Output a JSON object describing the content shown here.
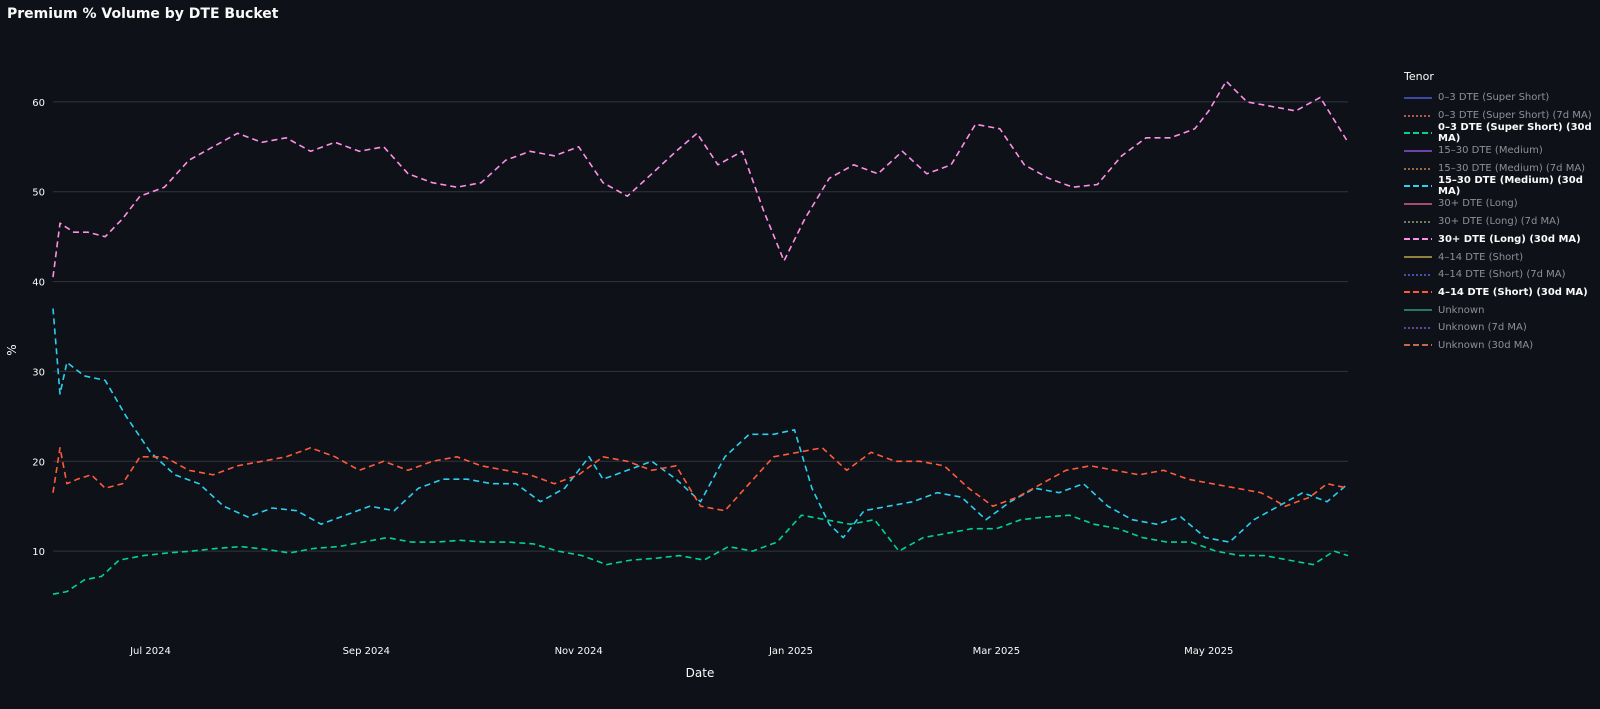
{
  "chart_data": {
    "type": "line",
    "title": "Premium % Volume by DTE Bucket",
    "xlabel": "Date",
    "ylabel": "%",
    "ylim": [
      2,
      68
    ],
    "yticks": [
      10,
      20,
      30,
      40,
      50,
      60
    ],
    "x_start": "2024-06-03",
    "x_end": "2025-06-10",
    "xticks": [
      {
        "date": "2024-07-01",
        "label": "Jul 2024"
      },
      {
        "date": "2024-09-01",
        "label": "Sep 2024"
      },
      {
        "date": "2024-11-01",
        "label": "Nov 2024"
      },
      {
        "date": "2025-01-01",
        "label": "Jan 2025"
      },
      {
        "date": "2025-03-01",
        "label": "Mar 2025"
      },
      {
        "date": "2025-05-01",
        "label": "May 2025"
      }
    ],
    "legend": {
      "title": "Tenor",
      "items": [
        {
          "label": "0–3 DTE (Super Short)",
          "color": "#4e5ad6",
          "dash": "solid",
          "bold": false
        },
        {
          "label": "0–3 DTE (Super Short) (7d MA)",
          "color": "#e8715e",
          "dash": "dot",
          "bold": false
        },
        {
          "label": "0–3 DTE (Super Short) (30d MA)",
          "color": "#00d48f",
          "dash": "dash",
          "bold": true
        },
        {
          "label": "15–30 DTE (Medium)",
          "color": "#8b56d8",
          "dash": "solid",
          "bold": false
        },
        {
          "label": "15–30 DTE (Medium) (7d MA)",
          "color": "#c9874c",
          "dash": "dot",
          "bold": false
        },
        {
          "label": "15–30 DTE (Medium) (30d MA)",
          "color": "#2ad0f0",
          "dash": "dash",
          "bold": true
        },
        {
          "label": "30+ DTE (Long)",
          "color": "#d8608a",
          "dash": "solid",
          "bold": false
        },
        {
          "label": "30+ DTE (Long) (7d MA)",
          "color": "#9ea07a",
          "dash": "dot",
          "bold": false
        },
        {
          "label": "30+ DTE (Long) (30d MA)",
          "color": "#ff8fe8",
          "dash": "dash",
          "bold": true
        },
        {
          "label": "4–14 DTE (Short)",
          "color": "#b9a84a",
          "dash": "solid",
          "bold": false
        },
        {
          "label": "4–14 DTE (Short) (7d MA)",
          "color": "#5866d6",
          "dash": "dot",
          "bold": false
        },
        {
          "label": "4–14 DTE (Short) (30d MA)",
          "color": "#ff5a3c",
          "dash": "dash",
          "bold": true
        },
        {
          "label": "Unknown",
          "color": "#2e9c76",
          "dash": "solid",
          "bold": false
        },
        {
          "label": "Unknown (7d MA)",
          "color": "#7a56c9",
          "dash": "dot",
          "bold": false
        },
        {
          "label": "Unknown (30d MA)",
          "color": "#c46a4c",
          "dash": "dash",
          "bold": false
        }
      ]
    },
    "series": [
      {
        "name": "30+ DTE (Long) (30d MA)",
        "color": "#ff8fe8",
        "points": [
          [
            "2024-06-03",
            40.5
          ],
          [
            "2024-06-05",
            46.5
          ],
          [
            "2024-06-09",
            45.5
          ],
          [
            "2024-06-13",
            45.5
          ],
          [
            "2024-06-18",
            45.0
          ],
          [
            "2024-06-23",
            47.0
          ],
          [
            "2024-06-28",
            49.5
          ],
          [
            "2024-07-05",
            50.5
          ],
          [
            "2024-07-12",
            53.5
          ],
          [
            "2024-07-19",
            55.0
          ],
          [
            "2024-07-26",
            56.5
          ],
          [
            "2024-08-02",
            55.5
          ],
          [
            "2024-08-09",
            56.0
          ],
          [
            "2024-08-16",
            54.5
          ],
          [
            "2024-08-23",
            55.5
          ],
          [
            "2024-08-30",
            54.5
          ],
          [
            "2024-09-06",
            55.0
          ],
          [
            "2024-09-13",
            52.0
          ],
          [
            "2024-09-20",
            51.0
          ],
          [
            "2024-09-27",
            50.5
          ],
          [
            "2024-10-04",
            51.0
          ],
          [
            "2024-10-11",
            53.5
          ],
          [
            "2024-10-18",
            54.5
          ],
          [
            "2024-10-25",
            54.0
          ],
          [
            "2024-11-01",
            55.0
          ],
          [
            "2024-11-08",
            51.0
          ],
          [
            "2024-11-15",
            49.5
          ],
          [
            "2024-11-22",
            52.0
          ],
          [
            "2024-11-29",
            54.5
          ],
          [
            "2024-12-05",
            56.5
          ],
          [
            "2024-12-11",
            53.0
          ],
          [
            "2024-12-18",
            54.5
          ],
          [
            "2024-12-24",
            48.0
          ],
          [
            "2024-12-30",
            42.3
          ],
          [
            "2025-01-05",
            47.0
          ],
          [
            "2025-01-12",
            51.5
          ],
          [
            "2025-01-19",
            53.0
          ],
          [
            "2025-01-26",
            52.0
          ],
          [
            "2025-02-02",
            54.5
          ],
          [
            "2025-02-09",
            52.0
          ],
          [
            "2025-02-16",
            53.0
          ],
          [
            "2025-02-23",
            57.5
          ],
          [
            "2025-03-02",
            57.0
          ],
          [
            "2025-03-09",
            53.0
          ],
          [
            "2025-03-16",
            51.5
          ],
          [
            "2025-03-23",
            50.5
          ],
          [
            "2025-03-30",
            50.8
          ],
          [
            "2025-04-06",
            54.0
          ],
          [
            "2025-04-13",
            56.0
          ],
          [
            "2025-04-20",
            56.0
          ],
          [
            "2025-04-27",
            57.0
          ],
          [
            "2025-05-01",
            59.0
          ],
          [
            "2025-05-06",
            62.3
          ],
          [
            "2025-05-12",
            60.0
          ],
          [
            "2025-05-19",
            59.5
          ],
          [
            "2025-05-26",
            59.0
          ],
          [
            "2025-06-02",
            60.5
          ],
          [
            "2025-06-06",
            58.0
          ],
          [
            "2025-06-10",
            55.5
          ]
        ]
      },
      {
        "name": "15–30 DTE (Medium) (30d MA)",
        "color": "#2ad0f0",
        "points": [
          [
            "2024-06-03",
            37.0
          ],
          [
            "2024-06-05",
            27.5
          ],
          [
            "2024-06-07",
            31.0
          ],
          [
            "2024-06-12",
            29.5
          ],
          [
            "2024-06-18",
            29.0
          ],
          [
            "2024-06-24",
            25.0
          ],
          [
            "2024-07-01",
            21.0
          ],
          [
            "2024-07-08",
            18.5
          ],
          [
            "2024-07-15",
            17.5
          ],
          [
            "2024-07-22",
            15.0
          ],
          [
            "2024-07-29",
            13.8
          ],
          [
            "2024-08-05",
            14.8
          ],
          [
            "2024-08-12",
            14.5
          ],
          [
            "2024-08-19",
            13.0
          ],
          [
            "2024-08-26",
            14.0
          ],
          [
            "2024-09-02",
            15.0
          ],
          [
            "2024-09-09",
            14.5
          ],
          [
            "2024-09-16",
            17.0
          ],
          [
            "2024-09-23",
            18.0
          ],
          [
            "2024-09-30",
            18.0
          ],
          [
            "2024-10-07",
            17.5
          ],
          [
            "2024-10-14",
            17.5
          ],
          [
            "2024-10-21",
            15.5
          ],
          [
            "2024-10-28",
            17.0
          ],
          [
            "2024-11-04",
            20.5
          ],
          [
            "2024-11-08",
            18.0
          ],
          [
            "2024-11-15",
            19.0
          ],
          [
            "2024-11-22",
            20.0
          ],
          [
            "2024-11-29",
            18.0
          ],
          [
            "2024-12-06",
            15.5
          ],
          [
            "2024-12-13",
            20.5
          ],
          [
            "2024-12-20",
            23.0
          ],
          [
            "2024-12-27",
            23.0
          ],
          [
            "2025-01-02",
            23.5
          ],
          [
            "2025-01-07",
            17.0
          ],
          [
            "2025-01-12",
            13.0
          ],
          [
            "2025-01-16",
            11.5
          ],
          [
            "2025-01-22",
            14.5
          ],
          [
            "2025-01-29",
            15.0
          ],
          [
            "2025-02-05",
            15.5
          ],
          [
            "2025-02-12",
            16.5
          ],
          [
            "2025-02-19",
            16.0
          ],
          [
            "2025-02-26",
            13.5
          ],
          [
            "2025-03-05",
            15.5
          ],
          [
            "2025-03-12",
            17.0
          ],
          [
            "2025-03-19",
            16.5
          ],
          [
            "2025-03-26",
            17.5
          ],
          [
            "2025-04-02",
            15.0
          ],
          [
            "2025-04-09",
            13.5
          ],
          [
            "2025-04-16",
            13.0
          ],
          [
            "2025-04-23",
            13.8
          ],
          [
            "2025-04-30",
            11.5
          ],
          [
            "2025-05-07",
            11.0
          ],
          [
            "2025-05-14",
            13.5
          ],
          [
            "2025-05-21",
            15.0
          ],
          [
            "2025-05-28",
            16.5
          ],
          [
            "2025-06-04",
            15.5
          ],
          [
            "2025-06-10",
            17.5
          ]
        ]
      },
      {
        "name": "4–14 DTE (Short) (30d MA)",
        "color": "#ff5a3c",
        "points": [
          [
            "2024-06-03",
            16.5
          ],
          [
            "2024-06-05",
            21.5
          ],
          [
            "2024-06-07",
            17.5
          ],
          [
            "2024-06-10",
            18.0
          ],
          [
            "2024-06-14",
            18.5
          ],
          [
            "2024-06-18",
            17.0
          ],
          [
            "2024-06-23",
            17.5
          ],
          [
            "2024-06-28",
            20.5
          ],
          [
            "2024-07-05",
            20.5
          ],
          [
            "2024-07-12",
            19.0
          ],
          [
            "2024-07-19",
            18.5
          ],
          [
            "2024-07-26",
            19.5
          ],
          [
            "2024-08-02",
            20.0
          ],
          [
            "2024-08-09",
            20.5
          ],
          [
            "2024-08-16",
            21.5
          ],
          [
            "2024-08-23",
            20.5
          ],
          [
            "2024-08-30",
            19.0
          ],
          [
            "2024-09-06",
            20.0
          ],
          [
            "2024-09-13",
            19.0
          ],
          [
            "2024-09-20",
            20.0
          ],
          [
            "2024-09-27",
            20.5
          ],
          [
            "2024-10-04",
            19.5
          ],
          [
            "2024-10-11",
            19.0
          ],
          [
            "2024-10-18",
            18.5
          ],
          [
            "2024-10-25",
            17.5
          ],
          [
            "2024-11-01",
            18.5
          ],
          [
            "2024-11-08",
            20.5
          ],
          [
            "2024-11-15",
            20.0
          ],
          [
            "2024-11-22",
            19.0
          ],
          [
            "2024-11-29",
            19.5
          ],
          [
            "2024-12-06",
            15.0
          ],
          [
            "2024-12-13",
            14.5
          ],
          [
            "2024-12-20",
            17.5
          ],
          [
            "2024-12-27",
            20.5
          ],
          [
            "2025-01-03",
            21.0
          ],
          [
            "2025-01-10",
            21.5
          ],
          [
            "2025-01-17",
            19.0
          ],
          [
            "2025-01-24",
            21.0
          ],
          [
            "2025-01-31",
            20.0
          ],
          [
            "2025-02-07",
            20.0
          ],
          [
            "2025-02-14",
            19.5
          ],
          [
            "2025-02-21",
            17.0
          ],
          [
            "2025-02-28",
            15.0
          ],
          [
            "2025-03-07",
            16.0
          ],
          [
            "2025-03-14",
            17.5
          ],
          [
            "2025-03-21",
            19.0
          ],
          [
            "2025-03-28",
            19.5
          ],
          [
            "2025-04-04",
            19.0
          ],
          [
            "2025-04-11",
            18.5
          ],
          [
            "2025-04-18",
            19.0
          ],
          [
            "2025-04-25",
            18.0
          ],
          [
            "2025-05-02",
            17.5
          ],
          [
            "2025-05-09",
            17.0
          ],
          [
            "2025-05-16",
            16.5
          ],
          [
            "2025-05-23",
            15.0
          ],
          [
            "2025-05-30",
            16.0
          ],
          [
            "2025-06-04",
            17.5
          ],
          [
            "2025-06-10",
            17.0
          ]
        ]
      },
      {
        "name": "0–3 DTE (Super Short) (30d MA)",
        "color": "#00d48f",
        "points": [
          [
            "2024-06-03",
            5.2
          ],
          [
            "2024-06-07",
            5.5
          ],
          [
            "2024-06-12",
            6.8
          ],
          [
            "2024-06-17",
            7.2
          ],
          [
            "2024-06-22",
            9.0
          ],
          [
            "2024-06-29",
            9.5
          ],
          [
            "2024-07-06",
            9.8
          ],
          [
            "2024-07-13",
            10.0
          ],
          [
            "2024-07-20",
            10.3
          ],
          [
            "2024-07-27",
            10.5
          ],
          [
            "2024-08-03",
            10.2
          ],
          [
            "2024-08-10",
            9.8
          ],
          [
            "2024-08-17",
            10.3
          ],
          [
            "2024-08-24",
            10.5
          ],
          [
            "2024-08-31",
            11.0
          ],
          [
            "2024-09-07",
            11.5
          ],
          [
            "2024-09-14",
            11.0
          ],
          [
            "2024-09-21",
            11.0
          ],
          [
            "2024-09-28",
            11.2
          ],
          [
            "2024-10-05",
            11.0
          ],
          [
            "2024-10-12",
            11.0
          ],
          [
            "2024-10-19",
            10.8
          ],
          [
            "2024-10-26",
            10.0
          ],
          [
            "2024-11-02",
            9.5
          ],
          [
            "2024-11-09",
            8.5
          ],
          [
            "2024-11-16",
            9.0
          ],
          [
            "2024-11-23",
            9.2
          ],
          [
            "2024-11-30",
            9.5
          ],
          [
            "2024-12-07",
            9.0
          ],
          [
            "2024-12-14",
            10.5
          ],
          [
            "2024-12-21",
            10.0
          ],
          [
            "2024-12-28",
            11.0
          ],
          [
            "2025-01-04",
            14.0
          ],
          [
            "2025-01-11",
            13.5
          ],
          [
            "2025-01-18",
            13.0
          ],
          [
            "2025-01-25",
            13.5
          ],
          [
            "2025-02-01",
            10.0
          ],
          [
            "2025-02-08",
            11.5
          ],
          [
            "2025-02-15",
            12.0
          ],
          [
            "2025-02-22",
            12.5
          ],
          [
            "2025-03-01",
            12.5
          ],
          [
            "2025-03-08",
            13.5
          ],
          [
            "2025-03-15",
            13.8
          ],
          [
            "2025-03-22",
            14.0
          ],
          [
            "2025-03-29",
            13.0
          ],
          [
            "2025-04-05",
            12.5
          ],
          [
            "2025-04-12",
            11.5
          ],
          [
            "2025-04-19",
            11.0
          ],
          [
            "2025-04-26",
            11.0
          ],
          [
            "2025-05-03",
            10.0
          ],
          [
            "2025-05-10",
            9.5
          ],
          [
            "2025-05-17",
            9.5
          ],
          [
            "2025-05-24",
            9.0
          ],
          [
            "2025-05-31",
            8.5
          ],
          [
            "2025-06-06",
            10.0
          ],
          [
            "2025-06-10",
            9.5
          ]
        ]
      }
    ]
  }
}
